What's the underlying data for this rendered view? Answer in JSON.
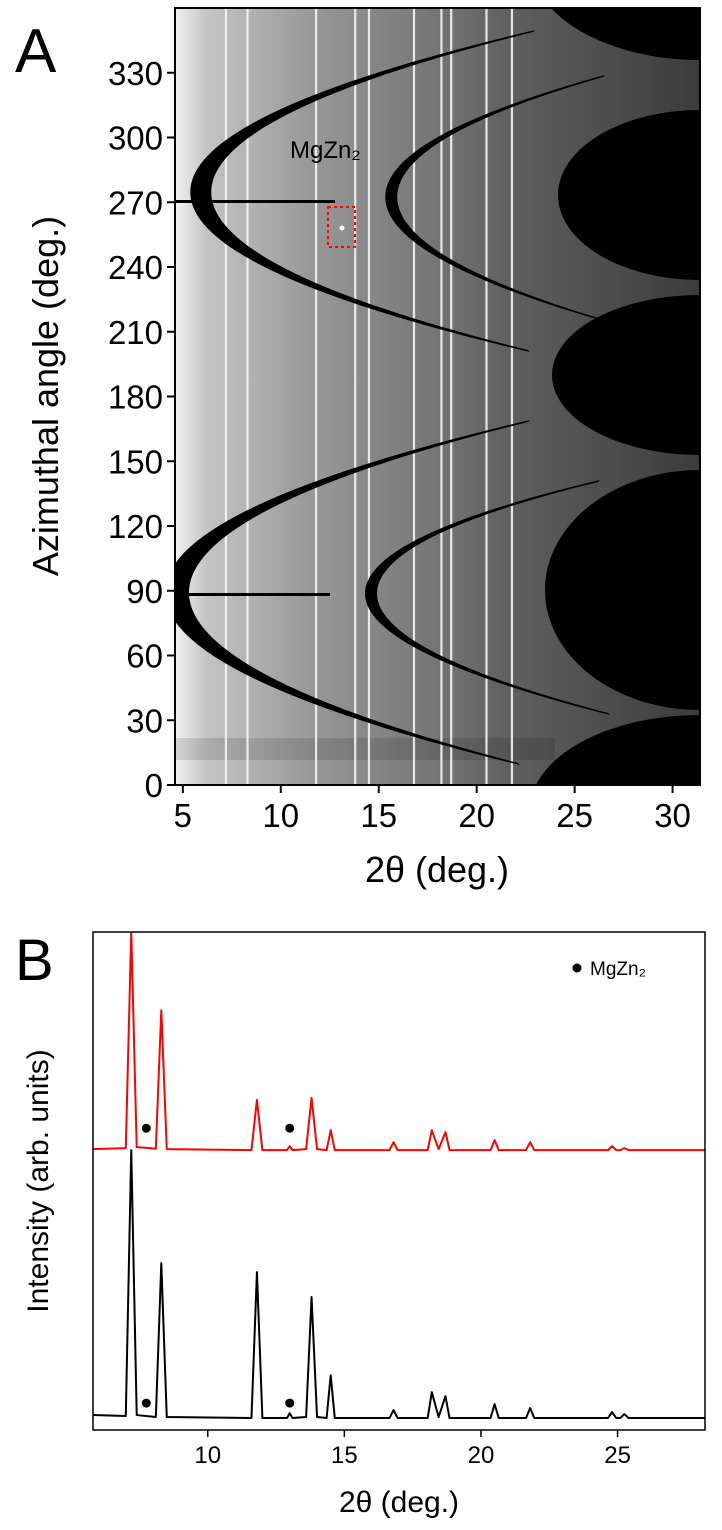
{
  "chart_data": [
    {
      "type": "image",
      "panel_label": "A",
      "xlabel": "2θ (deg.)",
      "ylabel": "Azimuthal angle (deg.)",
      "xlim": [
        4.6,
        31.4
      ],
      "ylim": [
        0,
        360
      ],
      "xticks": [
        5,
        10,
        15,
        20,
        25,
        30
      ],
      "yticks": [
        0,
        30,
        60,
        90,
        120,
        150,
        180,
        210,
        240,
        270,
        300,
        330
      ],
      "annotation": "MgZn₂",
      "ring_positions": [
        7.2,
        8.3,
        11.8,
        13.8,
        14.5,
        16.8,
        18.2,
        18.7,
        20.5,
        21.8
      ]
    },
    {
      "type": "line",
      "panel_label": "B",
      "xlabel": "2θ (deg.)",
      "ylabel": "Intensity (arb. units)",
      "xlim": [
        5.8,
        28.2
      ],
      "ylim": [
        0,
        100
      ],
      "xticks": [
        10,
        15,
        20,
        25
      ],
      "x": [
        5.8,
        7.0,
        7.2,
        7.4,
        8.1,
        8.3,
        8.5,
        11.6,
        11.8,
        12.0,
        12.9,
        13.0,
        13.1,
        13.6,
        13.8,
        14.0,
        14.35,
        14.5,
        14.65,
        16.65,
        16.8,
        16.95,
        18.05,
        18.2,
        18.45,
        18.7,
        18.85,
        20.35,
        20.5,
        20.65,
        21.65,
        21.8,
        21.95,
        24.65,
        24.8,
        24.95,
        25.1,
        25.25,
        25.4,
        28.2
      ],
      "series": [
        {
          "color": "#ff0000",
          "values": [
            56.4,
            56.6,
            100,
            56.8,
            56.5,
            84.3,
            56.4,
            56.2,
            66.3,
            56.2,
            56.2,
            57.0,
            56.2,
            56.4,
            66.7,
            56.4,
            56.2,
            60.2,
            56.2,
            56.2,
            57.8,
            56.2,
            56.2,
            60.2,
            56.4,
            59.8,
            56.2,
            56.2,
            58.2,
            56.2,
            56.2,
            57.8,
            56.2,
            56.2,
            57.0,
            56.2,
            56.2,
            56.6,
            56.2,
            56.2
          ]
        },
        {
          "color": "#000000",
          "values": [
            3.0,
            2.8,
            56.2,
            3.0,
            2.6,
            33.5,
            2.6,
            2.4,
            31.7,
            2.4,
            2.4,
            3.4,
            2.4,
            2.6,
            26.7,
            2.6,
            2.4,
            11.0,
            2.4,
            2.4,
            4.0,
            2.4,
            2.4,
            7.6,
            2.6,
            6.8,
            2.4,
            2.4,
            5.2,
            2.4,
            2.4,
            4.4,
            2.4,
            2.4,
            3.6,
            2.4,
            2.4,
            3.2,
            2.4,
            2.4
          ]
        }
      ],
      "markers": {
        "name": "MgZn₂",
        "color": "#000000",
        "x": [
          7.75,
          13.0,
          7.75,
          13.0
        ],
        "values": [
          60.6,
          60.6,
          5.4,
          5.4
        ]
      }
    }
  ]
}
